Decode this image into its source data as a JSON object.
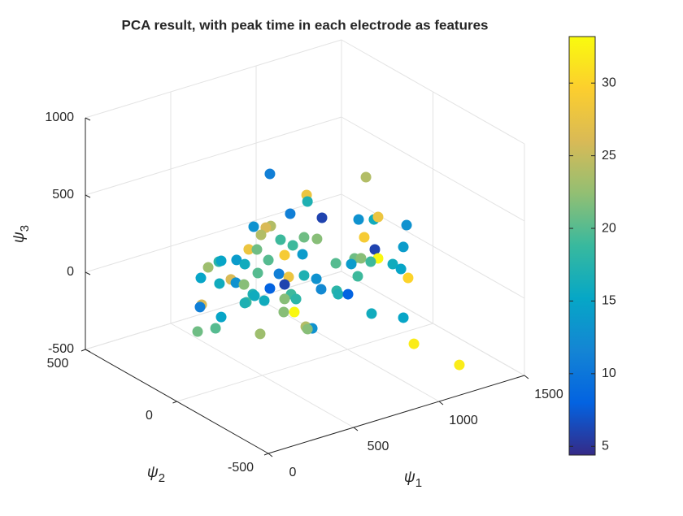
{
  "chart_data": {
    "type": "scatter3d",
    "title": "PCA result, with peak time in each electrode as features",
    "xlabel": "ψ1",
    "ylabel": "ψ2",
    "zlabel": "ψ3",
    "xlim": [
      0,
      1500
    ],
    "ylim": [
      -500,
      500
    ],
    "zlim": [
      -500,
      1000
    ],
    "xticks": [
      0,
      500,
      1000,
      1500
    ],
    "yticks": [
      -500,
      0,
      500
    ],
    "zticks": [
      -500,
      0,
      500,
      1000
    ],
    "grid": true,
    "clim": [
      4.4,
      33.2
    ],
    "cticks": [
      5,
      10,
      15,
      20,
      25,
      30
    ],
    "colormap": [
      "#352a87",
      "#0363e1",
      "#1485d4",
      "#06a7c6",
      "#38b99e",
      "#92bf73",
      "#d9ba56",
      "#fcce2e",
      "#f9fb0e"
    ],
    "x": [
      545,
      786,
      760,
      765,
      850,
      664,
      743,
      833,
      857,
      1024,
      450,
      550,
      521,
      493,
      776,
      745,
      821,
      607,
      679,
      421,
      469,
      1005,
      838,
      631,
      736,
      719,
      757,
      857,
      814,
      943,
      991,
      671,
      567,
      581,
      505,
      398,
      536,
      931,
      700,
      1033,
      738,
      474,
      598,
      655,
      745,
      817,
      462,
      638,
      571,
      667,
      393,
      631,
      545,
      845,
      936,
      945,
      681,
      669,
      698,
      445,
      455,
      631,
      407,
      512,
      467,
      457,
      398,
      626,
      688,
      819,
      581,
      1005,
      755,
      793,
      443,
      548,
      765,
      488,
      1067,
      1226
    ],
    "y": [
      0,
      -300,
      0,
      0,
      0,
      0,
      -300,
      -300,
      -300,
      -300,
      0,
      0,
      0,
      0,
      -300,
      0,
      0,
      0,
      0,
      0,
      0,
      -300,
      -300,
      0,
      0,
      -300,
      -300,
      -300,
      -300,
      -300,
      -300,
      300,
      300,
      300,
      300,
      0,
      0,
      0,
      -300,
      -300,
      -300,
      0,
      0,
      0,
      0,
      0,
      300,
      300,
      300,
      300,
      0,
      0,
      0,
      0,
      0,
      0,
      -300,
      0,
      0,
      0,
      0,
      0,
      0,
      0,
      300,
      300,
      0,
      0,
      0,
      -300,
      300,
      -300,
      0,
      0,
      300,
      300,
      0,
      0,
      -300,
      -400
    ],
    "z": [
      790,
      890,
      581,
      537,
      403,
      492,
      630,
      600,
      608,
      499,
      480,
      451,
      450,
      413,
      504,
      312,
      276,
      343,
      282,
      343,
      326,
      364,
      404,
      235,
      205,
      386,
      374,
      340,
      333,
      274,
      226,
      -12,
      12,
      13,
      -4,
      255,
      235,
      81,
      356,
      154,
      264,
      172,
      125,
      85,
      65,
      19,
      -58,
      -127,
      -131,
      -158,
      125,
      45,
      48,
      -58,
      -99,
      -124,
      167,
      -31,
      -72,
      45,
      31,
      -49,
      5,
      -20,
      -233,
      -245,
      3,
      -132,
      -153,
      -5,
      -351,
      -94,
      -270,
      -294,
      -399,
      -413,
      -289,
      -227,
      -284,
      -407
    ],
    "c": [
      11,
      24,
      28,
      17,
      6,
      11,
      13,
      16,
      28,
      13,
      13,
      24,
      26,
      24,
      29,
      21,
      22,
      19,
      19,
      28,
      21,
      14,
      6,
      29,
      14,
      21,
      22,
      33,
      19,
      16,
      15,
      14,
      18,
      15,
      23,
      16,
      20,
      20,
      14,
      30,
      19,
      20,
      11,
      28,
      17,
      13,
      15,
      26,
      16,
      13,
      22,
      6,
      8,
      12,
      18,
      17,
      8,
      19,
      18,
      17,
      16,
      22,
      19,
      16,
      26,
      11,
      17,
      22,
      33,
      16,
      15,
      15,
      24,
      13,
      21,
      20,
      22,
      23,
      32,
      32
    ]
  }
}
